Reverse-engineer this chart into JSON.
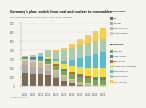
{
  "title": "Germany's plan: switch from coal and nuclear to renewables",
  "subtitle": "Electricity generation in Germany, 2000-2050, scenario",
  "source": "Energy Transition",
  "years": [
    2000,
    2005,
    2010,
    2015,
    2020,
    2025,
    2030,
    2035,
    2040,
    2045,
    2050
  ],
  "legend_top": [
    {
      "label": "Coal",
      "color": "#8B7355"
    },
    {
      "label": "Nuclear",
      "color": "#A8A8A8"
    },
    {
      "label": "Gas (CCS/H2)",
      "color": "#C8B4A0"
    },
    {
      "label": "Other thermal",
      "color": "#D4C4B0"
    }
  ],
  "legend_bottom": [
    {
      "label": "Biomass",
      "color": "#88AA44"
    },
    {
      "label": "Hydro power",
      "color": "#4488CC"
    },
    {
      "label": "Geothermal",
      "color": "#CC6644"
    },
    {
      "label": "Photovoltaic (rooftop)",
      "color": "#FFDD00"
    },
    {
      "label": "Wind offshore",
      "color": "#44AACC"
    },
    {
      "label": "Wind onshore",
      "color": "#88CC88"
    },
    {
      "label": "Solar (utility)",
      "color": "#FFCC00"
    }
  ],
  "series": {
    "Coal": [
      150,
      140,
      130,
      120,
      90,
      60,
      30,
      10,
      5,
      2,
      0
    ],
    "Nuclear": [
      80,
      75,
      70,
      50,
      20,
      0,
      0,
      0,
      0,
      0,
      0
    ],
    "Gas": [
      50,
      55,
      60,
      60,
      55,
      50,
      40,
      30,
      20,
      10,
      5
    ],
    "Other": [
      20,
      20,
      20,
      15,
      15,
      15,
      10,
      10,
      5,
      5,
      5
    ],
    "Biomass": [
      10,
      15,
      25,
      35,
      40,
      45,
      50,
      55,
      55,
      55,
      55
    ],
    "Hydro": [
      20,
      20,
      20,
      20,
      20,
      20,
      20,
      20,
      20,
      20,
      20
    ],
    "Geothermal": [
      0,
      0,
      0,
      1,
      2,
      5,
      8,
      10,
      12,
      14,
      15
    ],
    "PV_rooftop": [
      0,
      0,
      5,
      20,
      35,
      50,
      65,
      80,
      90,
      95,
      100
    ],
    "Wind_off": [
      0,
      0,
      2,
      8,
      20,
      40,
      70,
      100,
      130,
      160,
      180
    ],
    "Wind_on": [
      10,
      20,
      40,
      70,
      95,
      115,
      130,
      140,
      145,
      148,
      150
    ],
    "Solar_util": [
      0,
      0,
      1,
      5,
      15,
      30,
      50,
      70,
      90,
      105,
      120
    ]
  },
  "colors": {
    "Coal": "#7B6B55",
    "Nuclear": "#AAAAAA",
    "Gas": "#C8B49A",
    "Other": "#D4C8B8",
    "Biomass": "#7AAA44",
    "Hydro": "#4488BB",
    "Geothermal": "#CC6644",
    "PV_rooftop": "#FFDD22",
    "Wind_off": "#55BBDD",
    "Wind_on": "#AACCAA",
    "Solar_util": "#FFCC44"
  },
  "ylim": [
    0,
    700
  ],
  "ylabel": "TWh",
  "bg_color": "#F5F5F0",
  "plot_bg": "#F5F5F0"
}
